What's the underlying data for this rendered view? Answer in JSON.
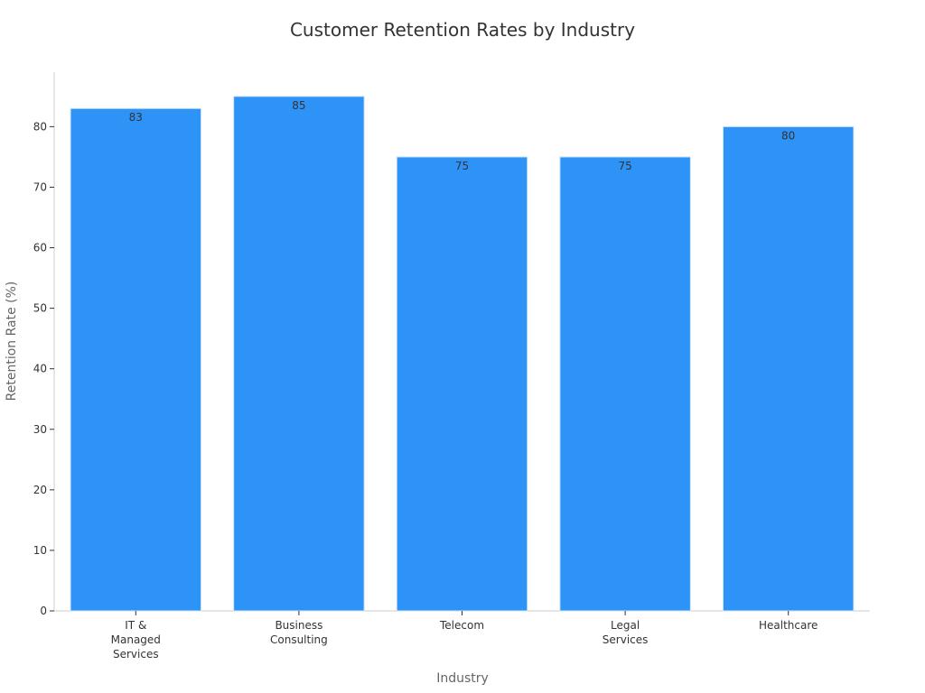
{
  "colors": {
    "bar": "#2e93f6",
    "bar_stroke": "#cfe3fb",
    "axis": "#cccccc",
    "text": "#333333",
    "axis_title": "#666666"
  },
  "chart_data": {
    "type": "bar",
    "title": "Customer Retention Rates by Industry",
    "xlabel": "Industry",
    "ylabel": "Retention Rate (%)",
    "ylim": [
      0,
      89
    ],
    "yticks": [
      0,
      10,
      20,
      30,
      40,
      50,
      60,
      70,
      80
    ],
    "grid": false,
    "categories": [
      [
        "IT &",
        "Managed",
        "Services"
      ],
      [
        "Business",
        "Consulting"
      ],
      [
        "Telecom"
      ],
      [
        "Legal",
        "Services"
      ],
      [
        "Healthcare"
      ]
    ],
    "values": [
      83,
      85,
      75,
      75,
      80
    ]
  }
}
